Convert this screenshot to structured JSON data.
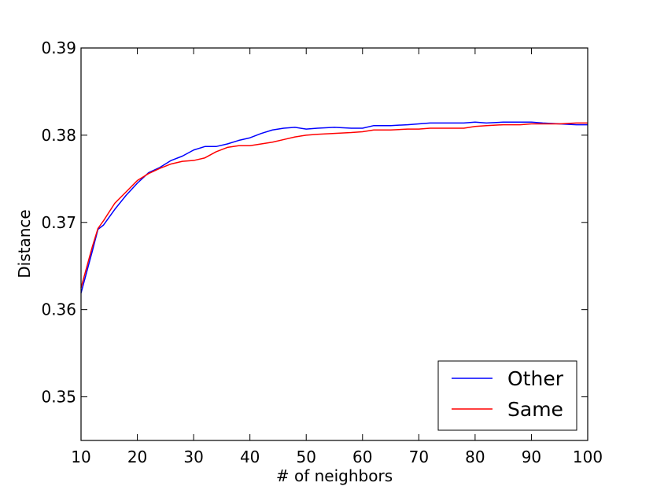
{
  "chart_data": {
    "type": "line",
    "title": "",
    "xlabel": "# of neighbors",
    "ylabel": "Distance",
    "xlim": [
      10,
      100
    ],
    "ylim": [
      0.345,
      0.39
    ],
    "xticks": [
      10,
      20,
      30,
      40,
      50,
      60,
      70,
      80,
      90,
      100
    ],
    "xtick_labels": [
      "10",
      "20",
      "30",
      "40",
      "50",
      "60",
      "70",
      "80",
      "90",
      "100"
    ],
    "yticks": [
      0.35,
      0.36,
      0.37,
      0.38,
      0.39
    ],
    "ytick_labels": [
      "0.35",
      "0.36",
      "0.37",
      "0.38",
      "0.39"
    ],
    "grid": false,
    "legend_position": "lower-right",
    "x": [
      10,
      12,
      13,
      14,
      16,
      18,
      20,
      22,
      24,
      26,
      28,
      30,
      32,
      34,
      36,
      38,
      40,
      42,
      44,
      46,
      48,
      50,
      52,
      55,
      58,
      60,
      62,
      65,
      68,
      70,
      72,
      75,
      78,
      80,
      82,
      85,
      88,
      90,
      92,
      95,
      98,
      100
    ],
    "series": [
      {
        "name": "Other",
        "color": "#0000ff",
        "values": [
          0.3619,
          0.3667,
          0.3692,
          0.3697,
          0.3715,
          0.3731,
          0.3745,
          0.3757,
          0.3763,
          0.3771,
          0.3776,
          0.3783,
          0.3787,
          0.3787,
          0.379,
          0.3794,
          0.3797,
          0.3802,
          0.3806,
          0.3808,
          0.3809,
          0.3807,
          0.3808,
          0.3809,
          0.3808,
          0.3808,
          0.3811,
          0.3811,
          0.3812,
          0.3813,
          0.3814,
          0.3814,
          0.3814,
          0.3815,
          0.3814,
          0.3815,
          0.3815,
          0.3815,
          0.3814,
          0.3813,
          0.3812,
          0.3812
        ]
      },
      {
        "name": "Same",
        "color": "#ff0000",
        "values": [
          0.3625,
          0.3672,
          0.3693,
          0.3702,
          0.3722,
          0.3735,
          0.3748,
          0.3756,
          0.3762,
          0.3767,
          0.377,
          0.3771,
          0.3774,
          0.3781,
          0.3786,
          0.3788,
          0.3788,
          0.379,
          0.3792,
          0.3795,
          0.3798,
          0.38,
          0.3801,
          0.3802,
          0.3803,
          0.3804,
          0.3806,
          0.3806,
          0.3807,
          0.3807,
          0.3808,
          0.3808,
          0.3808,
          0.381,
          0.3811,
          0.3812,
          0.3812,
          0.3813,
          0.3813,
          0.3813,
          0.3814,
          0.3814
        ]
      }
    ]
  }
}
